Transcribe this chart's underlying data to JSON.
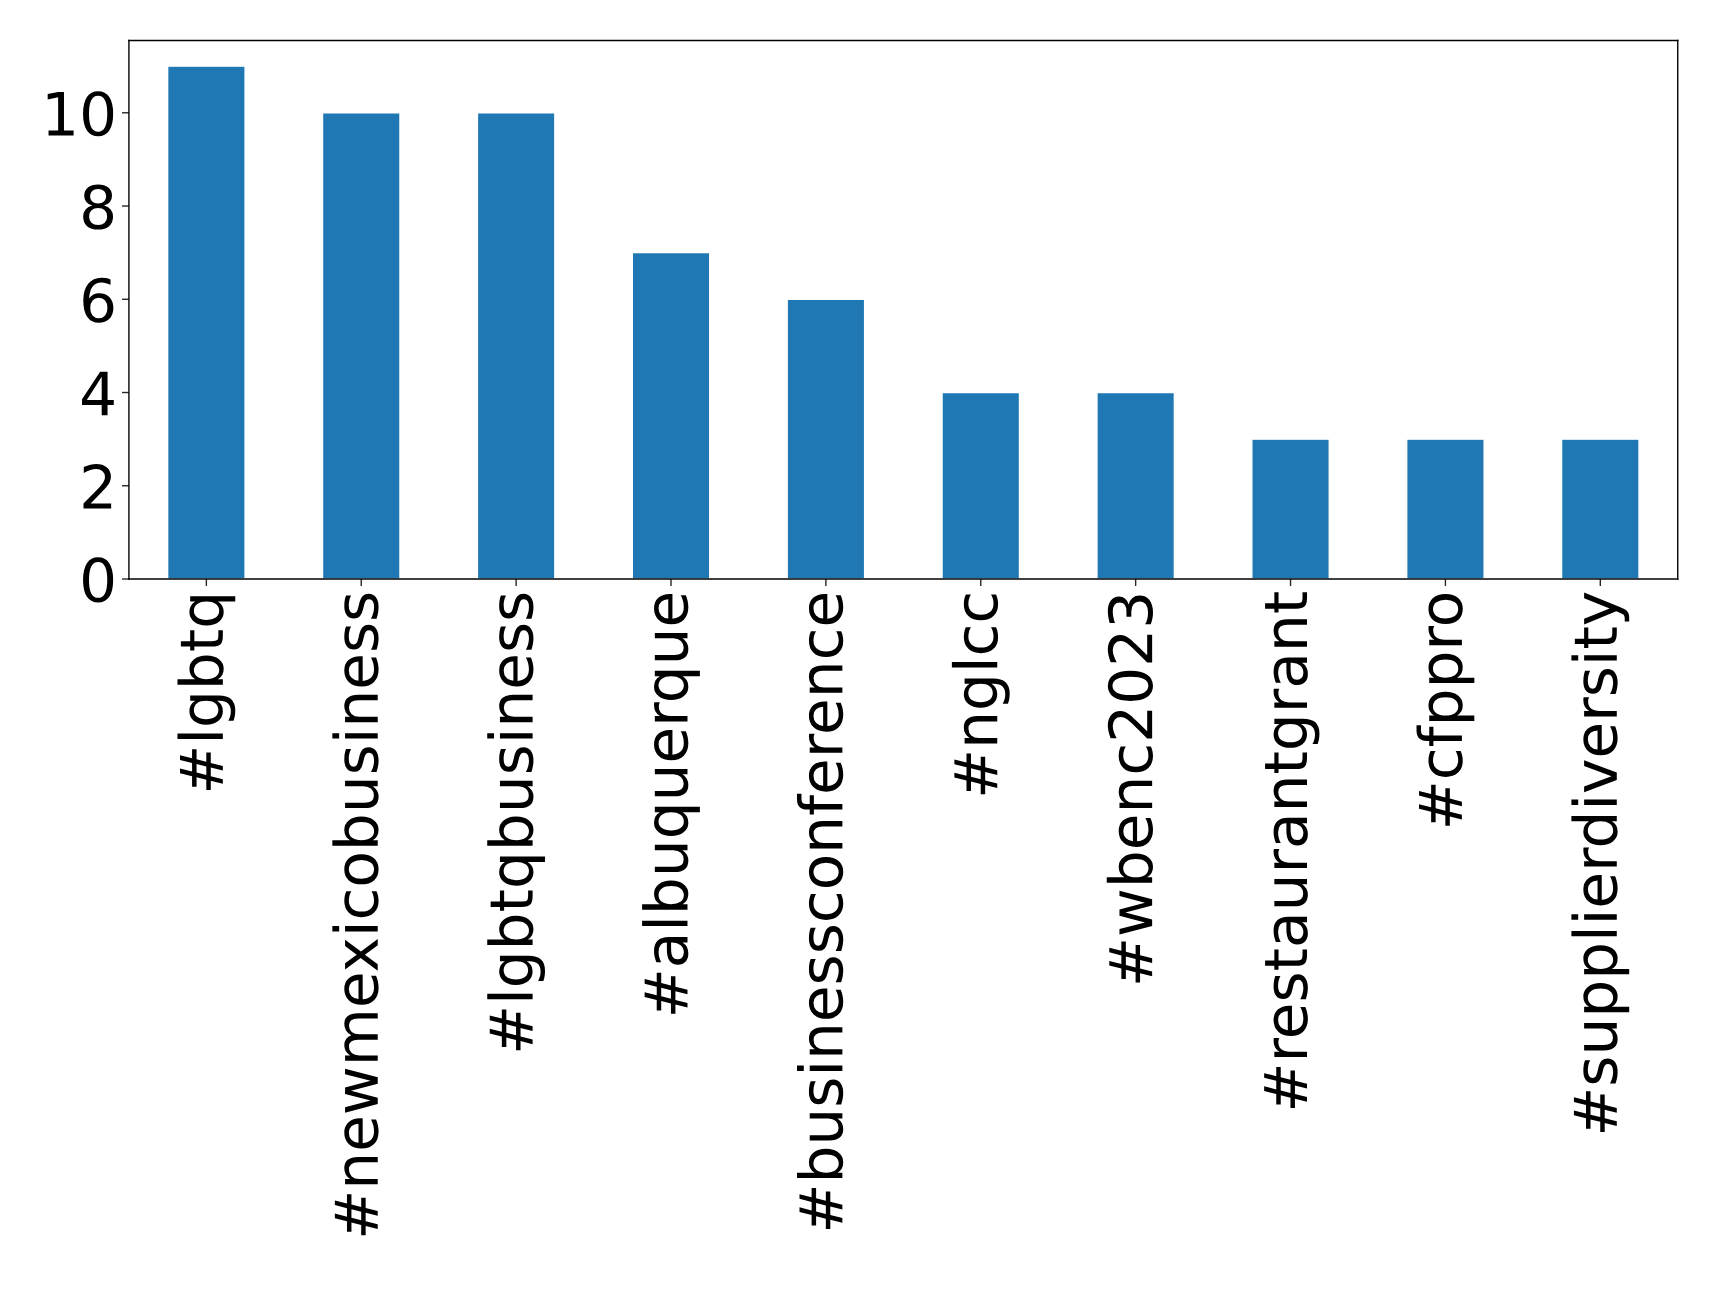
{
  "chart_data": {
    "type": "bar",
    "categories": [
      "#lgbtq",
      "#newmexicobusiness",
      "#lgbtqbusiness",
      "#albuquerque",
      "#businessconference",
      "#nglcc",
      "#wbenc2023",
      "#restaurantgrant",
      "#cfppro",
      "#supplierdiversity"
    ],
    "values": [
      11,
      10,
      10,
      7,
      6,
      4,
      4,
      3,
      3,
      3
    ],
    "color": "#1f77b4",
    "ylim": [
      0,
      11.55
    ],
    "yticks": [
      0,
      2,
      4,
      6,
      8,
      10
    ],
    "grid": false
  }
}
